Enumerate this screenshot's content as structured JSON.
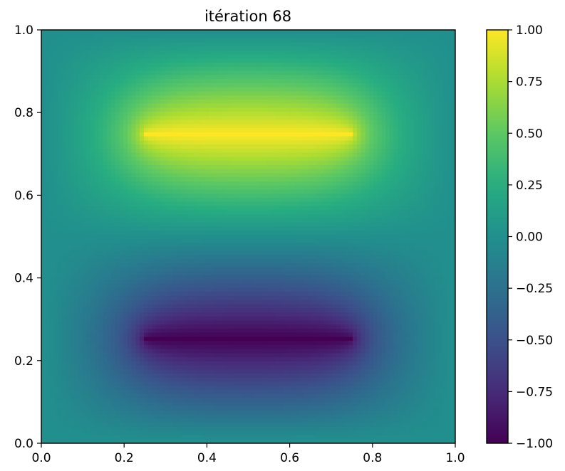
{
  "chart_data": {
    "type": "heatmap",
    "title": "itération 68",
    "xlabel": "",
    "ylabel": "",
    "xlim": [
      0.0,
      1.0
    ],
    "ylim": [
      0.0,
      1.0
    ],
    "x_ticks": [
      "0.0",
      "0.2",
      "0.4",
      "0.6",
      "0.8",
      "1.0"
    ],
    "y_ticks": [
      "0.0",
      "0.2",
      "0.4",
      "0.6",
      "0.8",
      "1.0"
    ],
    "colormap": "viridis",
    "grid": false,
    "colorbar": {
      "vmin": -1.0,
      "vmax": 1.0,
      "ticks": [
        "1.00",
        "0.75",
        "0.50",
        "0.25",
        "0.00",
        "−0.25",
        "−0.50",
        "−0.75",
        "−1.00"
      ],
      "tick_values": [
        1.0,
        0.75,
        0.5,
        0.25,
        0.0,
        -0.25,
        -0.5,
        -0.75,
        -1.0
      ]
    },
    "field": {
      "description_of_sources": "line sources",
      "sources": [
        {
          "value": 1.0,
          "x_start": 0.25,
          "x_end": 0.75,
          "y": 0.75
        },
        {
          "value": -1.0,
          "x_start": 0.25,
          "x_end": 0.75,
          "y": 0.25
        }
      ],
      "boundary_value": 0.0,
      "grid_size": 101
    }
  }
}
